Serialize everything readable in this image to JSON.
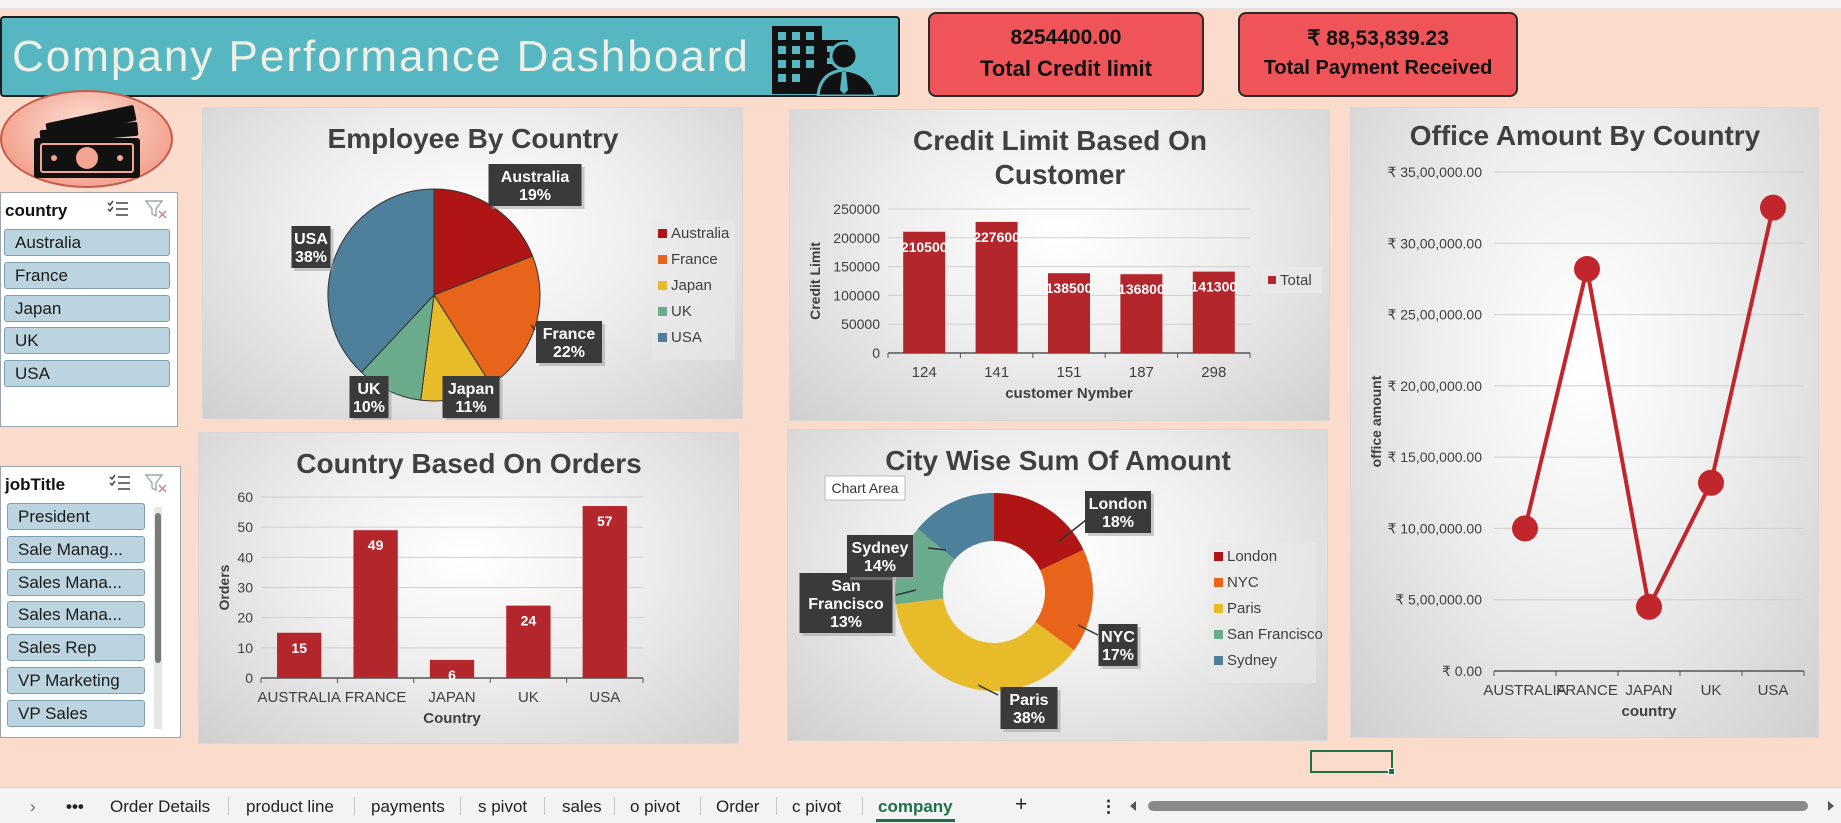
{
  "dashboard": {
    "title": "Company Performance Dashboard"
  },
  "kpis": [
    {
      "value": "8254400.00",
      "label": "Total Credit limit"
    },
    {
      "value": "₹ 88,53,839.23",
      "label": "Total Payment Received"
    }
  ],
  "slicers": {
    "country": {
      "title": "country",
      "items": [
        "Australia",
        "France",
        "Japan",
        "UK",
        "USA"
      ]
    },
    "jobtitle": {
      "title": "jobTitle",
      "items": [
        "President",
        "Sale Manag...",
        "Sales Mana...",
        "Sales Mana...",
        "Sales Rep",
        "VP Marketing",
        "VP Sales"
      ]
    }
  },
  "chart_data": [
    {
      "id": "employee-by-country",
      "type": "pie",
      "title": "Employee By Country",
      "categories": [
        "Australia",
        "France",
        "Japan",
        "UK",
        "USA"
      ],
      "values": [
        19,
        22,
        11,
        10,
        38
      ],
      "data_labels": [
        [
          "Australia",
          "19%"
        ],
        [
          "France",
          "22%"
        ],
        [
          "Japan",
          "11%"
        ],
        [
          "UK",
          "10%"
        ],
        [
          "USA",
          "38%"
        ]
      ],
      "legend": "right",
      "colors": [
        "#b01515",
        "#e8641a",
        "#e8bb2a",
        "#6aab8c",
        "#4e7f9b"
      ]
    },
    {
      "id": "credit-limit-by-customer",
      "type": "bar",
      "title": "Credit Limit Based On Customer",
      "title_lines": [
        "Credit Limit Based On",
        "Customer"
      ],
      "categories": [
        "124",
        "141",
        "151",
        "187",
        "298"
      ],
      "values": [
        210500,
        227600,
        138500,
        136800,
        141300
      ],
      "value_labels": [
        "210500",
        "227600",
        "138500",
        "136800",
        "141300"
      ],
      "xlabel": "customer Nymber",
      "ylabel": "Credit Limit",
      "ylim": [
        0,
        250000
      ],
      "yticks": [
        0,
        50000,
        100000,
        150000,
        200000,
        250000
      ],
      "ytick_labels": [
        "0",
        "50000",
        "100000",
        "150000",
        "200000",
        "250000"
      ],
      "legend": {
        "position": "right",
        "entries": [
          "Total"
        ]
      },
      "color": "#b3262c"
    },
    {
      "id": "office-amount-by-country",
      "type": "line",
      "title": "Office Amount  By Country",
      "categories": [
        "AUSTRALIA",
        "FRANCE",
        "JAPAN",
        "UK",
        "USA"
      ],
      "values": [
        1000000,
        2820000,
        450000,
        1320000,
        3250000
      ],
      "xlabel": "country",
      "ylabel": "office amount",
      "ylim": [
        0,
        3500000
      ],
      "yticks": [
        0,
        500000,
        1000000,
        1500000,
        2000000,
        2500000,
        3000000,
        3500000
      ],
      "ytick_labels": [
        "₹ 0.00",
        "₹ 5,00,000.00",
        "₹ 10,00,000.00",
        "₹ 15,00,000.00",
        "₹ 20,00,000.00",
        "₹ 25,00,000.00",
        "₹ 30,00,000.00",
        "₹ 35,00,000.00"
      ],
      "color": "#c1262c"
    },
    {
      "id": "country-based-on-orders",
      "type": "bar",
      "title": "Country Based On Orders",
      "categories": [
        "AUSTRALIA",
        "FRANCE",
        "JAPAN",
        "UK",
        "USA"
      ],
      "values": [
        15,
        49,
        6,
        24,
        57
      ],
      "value_labels": [
        "15",
        "49",
        "6",
        "24",
        "57"
      ],
      "xlabel": "Country",
      "ylabel": "Orders",
      "ylim": [
        0,
        60
      ],
      "yticks": [
        0,
        10,
        20,
        30,
        40,
        50,
        60
      ],
      "ytick_labels": [
        "0",
        "10",
        "20",
        "30",
        "40",
        "50",
        "60"
      ],
      "color": "#b3262c"
    },
    {
      "id": "city-wise-sum-of-amount",
      "type": "pie",
      "donut": true,
      "title": "City Wise Sum Of Amount",
      "categories": [
        "London",
        "NYC",
        "Paris",
        "San Francisco",
        "Sydney"
      ],
      "values": [
        18,
        17,
        38,
        13,
        14
      ],
      "data_labels": [
        [
          "London",
          "18%"
        ],
        [
          "NYC",
          "17%"
        ],
        [
          "Paris",
          "38%"
        ],
        [
          "San",
          "Francisco",
          "13%"
        ],
        [
          "Sydney",
          "14%"
        ]
      ],
      "legend": "right",
      "tooltip": "Chart Area",
      "colors": [
        "#b01515",
        "#e8641a",
        "#e8bb2a",
        "#6aab8c",
        "#4e7f9b"
      ]
    }
  ],
  "sheet_tabs": {
    "items": [
      "Order Details",
      "product line",
      "payments",
      "s pivot",
      "sales",
      "o pivot",
      "Order",
      "c pivot",
      "company"
    ],
    "active": "company",
    "more_label": "•••",
    "nav_label": "›",
    "add_label": "+",
    "options_label": "⋮"
  }
}
